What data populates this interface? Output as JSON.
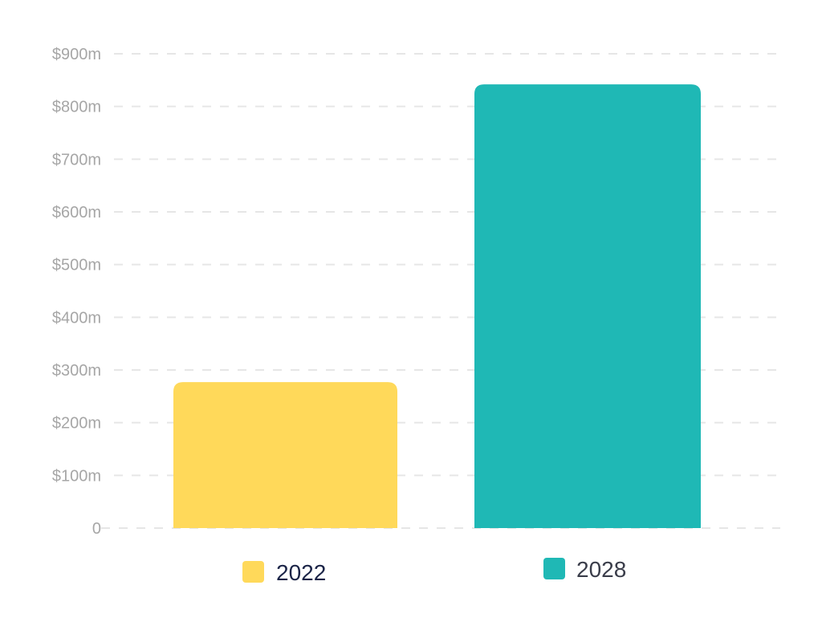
{
  "chart_data": {
    "type": "bar",
    "categories": [
      "2022",
      "2028"
    ],
    "values": [
      277,
      842
    ],
    "colors": [
      "#ffd95a",
      "#1fb8b5"
    ],
    "title": "",
    "xlabel": "",
    "ylabel": "",
    "ylim": [
      0,
      900
    ],
    "yticks": [
      0,
      100,
      200,
      300,
      400,
      500,
      600,
      700,
      800,
      900
    ],
    "ytick_labels": [
      "0",
      "$100m",
      "$200m",
      "$300m",
      "$400m",
      "$500m",
      "$600m",
      "$700m",
      "$800m",
      "$900m"
    ],
    "grid": true,
    "grid_style": "dashed",
    "legend": {
      "placement": "bottom",
      "entries": [
        {
          "label": "2022",
          "color": "#ffd95a",
          "text_color": "#1b2447"
        },
        {
          "label": "2028",
          "color": "#1fb8b5",
          "text_color": "#3a3d4a"
        }
      ]
    }
  }
}
